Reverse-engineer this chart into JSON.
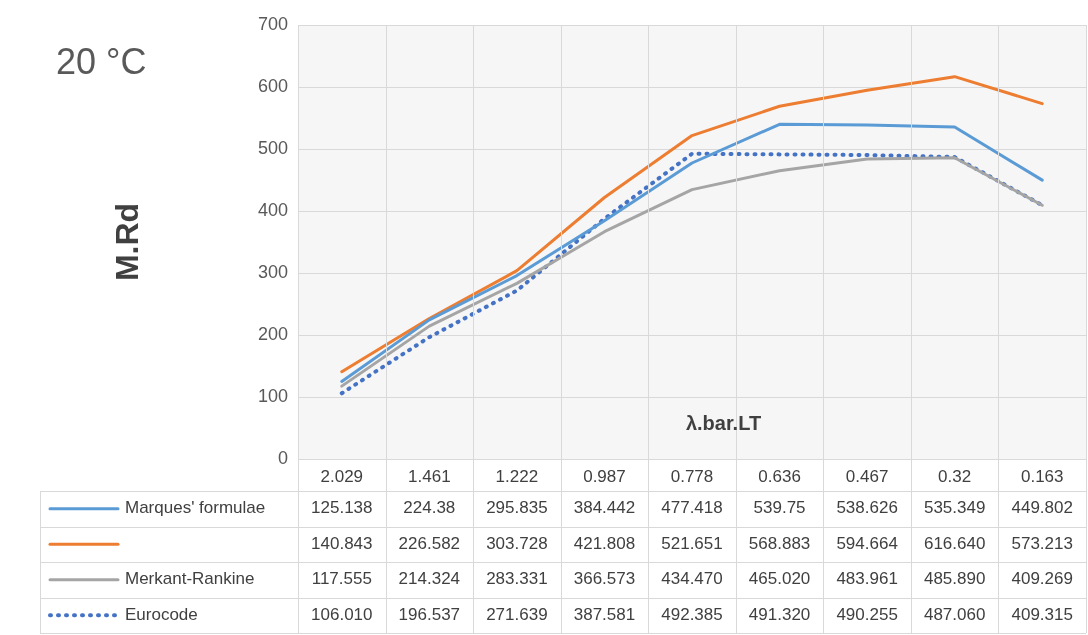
{
  "chart_data": {
    "type": "line",
    "title": "20 °C",
    "xlabel": "λ.bar.LT",
    "ylabel": "M.Rd",
    "categories": [
      "2.029",
      "1.461",
      "1.222",
      "0.987",
      "0.778",
      "0.636",
      "0.467",
      "0.32",
      "0.163"
    ],
    "series": [
      {
        "name": "Marques' formulae",
        "color": "#5b9bd5",
        "line_style": "solid",
        "values": [
          125.138,
          224.38,
          295.835,
          384.442,
          477.418,
          539.75,
          538.626,
          535.349,
          449.802
        ],
        "value_labels": [
          "125.138",
          "224.38",
          "295.835",
          "384.442",
          "477.418",
          "539.75",
          "538.626",
          "535.349",
          "449.802"
        ]
      },
      {
        "color": "#ed7d31",
        "line_style": "solid",
        "values": [
          140.843,
          226.582,
          303.728,
          421.808,
          521.651,
          568.883,
          594.664,
          616.64,
          573.213
        ],
        "value_labels": [
          "140.843",
          "226.582",
          "303.728",
          "421.808",
          "521.651",
          "568.883",
          "594.664",
          "616.640",
          "573.213"
        ]
      },
      {
        "name": "Merkant-Rankine",
        "color": "#a5a5a5",
        "line_style": "solid",
        "values": [
          117.555,
          214.324,
          283.331,
          366.573,
          434.47,
          465.02,
          483.961,
          485.89,
          409.269
        ],
        "value_labels": [
          "117.555",
          "214.324",
          "283.331",
          "366.573",
          "434.470",
          "465.020",
          "483.961",
          "485.890",
          "409.269"
        ]
      },
      {
        "name": "Eurocode",
        "color": "#4472c4",
        "line_style": "dotted",
        "values": [
          106.01,
          196.537,
          271.639,
          387.581,
          492.385,
          491.32,
          490.255,
          487.06,
          409.315
        ],
        "value_labels": [
          "106.010",
          "196.537",
          "271.639",
          "387.581",
          "492.385",
          "491.320",
          "490.255",
          "487.060",
          "409.315"
        ]
      }
    ],
    "ylim": [
      0,
      700
    ],
    "yticks": [
      0,
      100,
      200,
      300,
      400,
      500,
      600,
      700
    ],
    "grid": true,
    "legend": "bottom",
    "marker": "none"
  }
}
